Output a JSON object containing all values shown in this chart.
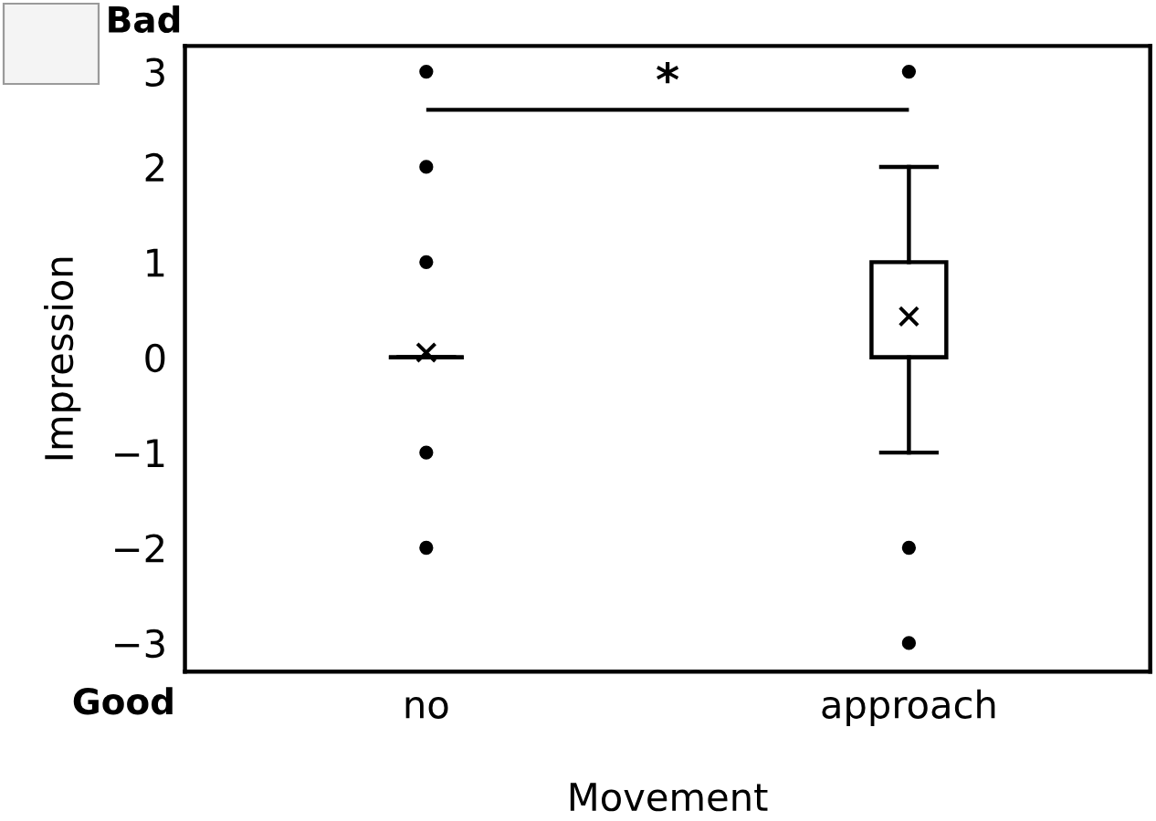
{
  "chart_data": {
    "type": "box",
    "xlabel": "Movement",
    "ylabel": "Impression",
    "categories": [
      "no",
      "approach"
    ],
    "boxes": [
      {
        "low": 0,
        "q1": 0,
        "median": 0,
        "q3": 0,
        "high": 0,
        "mean": 0.05,
        "outliers": [
          3,
          2,
          1,
          -1,
          -2
        ]
      },
      {
        "low": -1,
        "q1": 0,
        "median": 0,
        "q3": 1,
        "high": 2,
        "mean": 0.43,
        "outliers": [
          3,
          -2,
          -3
        ]
      }
    ],
    "ylim": [
      -3.3,
      3.27
    ],
    "yticks": [
      {
        "value": -3,
        "label": "−3"
      },
      {
        "value": -2,
        "label": "−2"
      },
      {
        "value": -1,
        "label": "−1"
      },
      0,
      1,
      2,
      3
    ],
    "annotations": [
      "*",
      "Bad",
      "Good"
    ],
    "grid": false,
    "legend": false
  }
}
